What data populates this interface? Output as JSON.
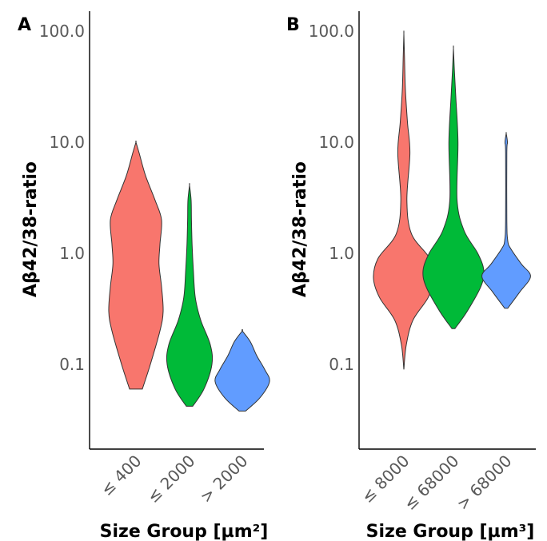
{
  "colors": [
    "#F8766D",
    "#00BA38",
    "#619CFF"
  ],
  "chart_data": [
    {
      "panel": "A",
      "type": "violin",
      "ylabel": "Aβ42/38-ratio",
      "xlabel": "Size Group [µm²]",
      "y_scale": "log10",
      "ylim": [
        0.015,
        150
      ],
      "yticks": [
        "0.1",
        "1.0",
        "10.0",
        "100.0"
      ],
      "grid": false,
      "legend": "none",
      "categories": [
        "≤ 400",
        "≤ 2000",
        "> 2000"
      ],
      "groups": [
        {
          "category": "≤ 400",
          "min": 0.06,
          "max": 10,
          "profile": [
            [
              0.06,
              0.2
            ],
            [
              0.1,
              0.45
            ],
            [
              0.2,
              0.75
            ],
            [
              0.3,
              0.85
            ],
            [
              0.5,
              0.8
            ],
            [
              0.8,
              0.72
            ],
            [
              1.2,
              0.75
            ],
            [
              2.0,
              0.8
            ],
            [
              3.0,
              0.6
            ],
            [
              5.0,
              0.3
            ],
            [
              8.0,
              0.1
            ],
            [
              10.0,
              0
            ]
          ]
        },
        {
          "category": "≤ 2000",
          "min": 0.042,
          "max": 4.1,
          "profile": [
            [
              0.042,
              0.1
            ],
            [
              0.06,
              0.45
            ],
            [
              0.1,
              0.7
            ],
            [
              0.15,
              0.65
            ],
            [
              0.25,
              0.35
            ],
            [
              0.4,
              0.18
            ],
            [
              0.7,
              0.12
            ],
            [
              1.2,
              0.08
            ],
            [
              2.0,
              0.06
            ],
            [
              3.0,
              0.05
            ],
            [
              4.1,
              0
            ]
          ]
        },
        {
          "category": "> 2000",
          "min": 0.038,
          "max": 0.2,
          "profile": [
            [
              0.038,
              0.1
            ],
            [
              0.05,
              0.55
            ],
            [
              0.07,
              0.85
            ],
            [
              0.09,
              0.7
            ],
            [
              0.12,
              0.45
            ],
            [
              0.16,
              0.25
            ],
            [
              0.2,
              0
            ]
          ]
        }
      ]
    },
    {
      "panel": "B",
      "type": "violin",
      "ylabel": "Aβ42/38-ratio",
      "xlabel": "Size Group [µm³]",
      "y_scale": "log10",
      "ylim": [
        0.015,
        150
      ],
      "yticks": [
        "0.1",
        "1.0",
        "10.0",
        "100.0"
      ],
      "grid": false,
      "legend": "none",
      "categories": [
        "≤ 8000",
        "≤ 68000",
        "> 68000"
      ],
      "groups": [
        {
          "category": "≤ 8000",
          "min": 0.09,
          "max": 95,
          "profile": [
            [
              0.09,
              0
            ],
            [
              0.15,
              0.08
            ],
            [
              0.25,
              0.3
            ],
            [
              0.4,
              0.8
            ],
            [
              0.6,
              1.0
            ],
            [
              0.9,
              0.85
            ],
            [
              1.5,
              0.25
            ],
            [
              3.0,
              0.1
            ],
            [
              8.0,
              0.2
            ],
            [
              15.0,
              0.12
            ],
            [
              30.0,
              0.05
            ],
            [
              60.0,
              0.02
            ],
            [
              95.0,
              0
            ]
          ]
        },
        {
          "category": "≤ 68000",
          "min": 0.21,
          "max": 70,
          "profile": [
            [
              0.21,
              0.05
            ],
            [
              0.3,
              0.45
            ],
            [
              0.5,
              0.9
            ],
            [
              0.7,
              1.0
            ],
            [
              1.0,
              0.8
            ],
            [
              1.6,
              0.35
            ],
            [
              3.0,
              0.12
            ],
            [
              10.0,
              0.15
            ],
            [
              25.0,
              0.08
            ],
            [
              45.0,
              0.03
            ],
            [
              70.0,
              0
            ]
          ]
        },
        {
          "category": "> 68000",
          "min": 0.32,
          "max": 12,
          "profile": [
            [
              0.32,
              0.05
            ],
            [
              0.45,
              0.45
            ],
            [
              0.62,
              0.8
            ],
            [
              0.8,
              0.5
            ],
            [
              1.1,
              0.15
            ],
            [
              1.3,
              0.05
            ],
            [
              2.0,
              0.02
            ],
            [
              8.0,
              0.02
            ],
            [
              10.0,
              0.04
            ],
            [
              12.0,
              0
            ]
          ]
        }
      ]
    }
  ]
}
